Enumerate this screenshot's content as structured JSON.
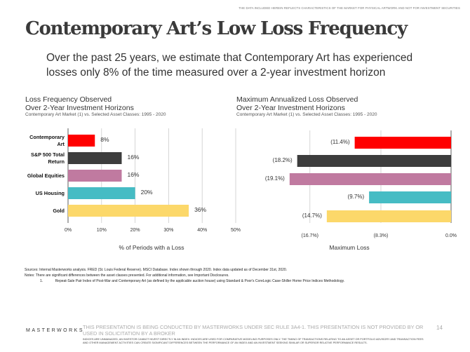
{
  "header": {
    "top_note": "THE DATA INCLUDED HEREIN REFLECTS CHARACTERISTICS OF THE MARKET FOR PHYSICAL ARTWORK AND NOT FOR INVESTMENT SECURITIES",
    "title": "Contemporary Art’s Low Loss Frequency",
    "subtitle": "Over the past 25 years, we estimate that Contemporary Art has experienced losses only 8% of the time measured over a 2-year investment horizon"
  },
  "chart_data": [
    {
      "type": "bar",
      "orientation": "horizontal",
      "title": "Loss Frequency Observed Over 2-Year Investment Horizons",
      "title_line1": "Loss Frequency Observed",
      "title_line2": "Over 2-Year Investment Horizons",
      "subtitle": "Contemporary Art Market (1) vs. Selected Asset Classes: 1995 - 2020",
      "categories": [
        "Contemporary Art",
        "S&P 500 Total Return",
        "Global Equities",
        "US Housing",
        "Gold"
      ],
      "category_lines": [
        [
          "Contemporary",
          "Art"
        ],
        [
          "S&P 500 Total",
          "Return"
        ],
        [
          "Global Equities"
        ],
        [
          "US Housing"
        ],
        [
          "Gold"
        ]
      ],
      "values": [
        8,
        16,
        16,
        20,
        36
      ],
      "data_labels": [
        "8%",
        "16%",
        "16%",
        "20%",
        "36%"
      ],
      "colors": [
        "#ff0000",
        "#3d3d3d",
        "#c07aa0",
        "#46bcc4",
        "#fcd86a"
      ],
      "xlim": [
        0,
        50
      ],
      "xticks": [
        0,
        10,
        20,
        30,
        40,
        50
      ],
      "xtick_labels": [
        "0%",
        "10%",
        "20%",
        "30%",
        "40%",
        "50%"
      ],
      "xlabel": "% of Periods with a Loss",
      "grid": true
    },
    {
      "type": "bar",
      "orientation": "horizontal",
      "title": "Maximum Annualized Loss Observed Over 2-Year Investment Horizons",
      "title_line1": "Maximum Annualized Loss Observed",
      "title_line2": "Over 2-Year Investment Horizons",
      "subtitle": "Contemporary Art Market (1) vs. Selected Asset Classes: 1995 - 2020",
      "categories": [
        "Contemporary Art",
        "S&P 500 Total Return",
        "Global Equities",
        "US Housing",
        "Gold"
      ],
      "values": [
        -11.4,
        -18.2,
        -19.1,
        -9.7,
        -14.7
      ],
      "data_labels": [
        "(11.4%)",
        "(18.2%)",
        "(19.1%)",
        "(9.7%)",
        "(14.7%)"
      ],
      "colors": [
        "#ff0000",
        "#3d3d3d",
        "#c07aa0",
        "#46bcc4",
        "#fcd86a"
      ],
      "xticks": [
        -16.7,
        -8.3,
        0
      ],
      "xtick_labels": [
        "(16.7%)",
        "(8.3%)",
        "0.0%"
      ],
      "xlabel": "Maximum Loss",
      "grid": true
    }
  ],
  "notes": {
    "sources": "Sources: Internal Masterworks analysis. FRED (St. Louis Federal Reserve). MSCI Database. Index shown through 2020. Index data updated as of December 31st, 2020.",
    "notes": "Notes:  There are significant differences between the asset classes presented. For additional information, see Important Disclosures.",
    "footnote_num": "1.",
    "footnote": "Repeat-Sale Pair Index of Post-War and Contemporary Art (as defined by the applicable auction house) using Standard & Poor's CoreLogic Case-Shiller Home Price Indices Methodology."
  },
  "footer": {
    "logo": "MASTERWORKS",
    "main": "THIS PRESENTATION  IS BEING CONDUCTED BY MASTERWORKS UNDER SEC RULE 3A4-1. THIS PRESENTATION  IS NOT PROVIDED BY OR USED IN SOLICITATION BY A BROKER",
    "disclaimer": "INDICES ARE UNMANAGED, AN INVESTOR CANNOT INVEST DIRECTLY IN AN INDEX. INDICES ARE USED FOR COMPARATIVE MODELING PURPOSES ONLY. THE TIMING OF TRANSACTIONS RELATING TO AN ASSET OR PORTFOLIO ADVISORY AND TRANSACTION FEES AND OTHER MANAGEMENT ACTIVITIES CAN CREATE SIGNIFICANT DIFFERENCES BETWEEN THE PERFORMANCE OF AN INDEX AND AN INVESTMENT SEEKING SIMILAR OR SUPERIOR RELATIVE PERFORMANCE RESULTS.",
    "page_number": "14"
  }
}
